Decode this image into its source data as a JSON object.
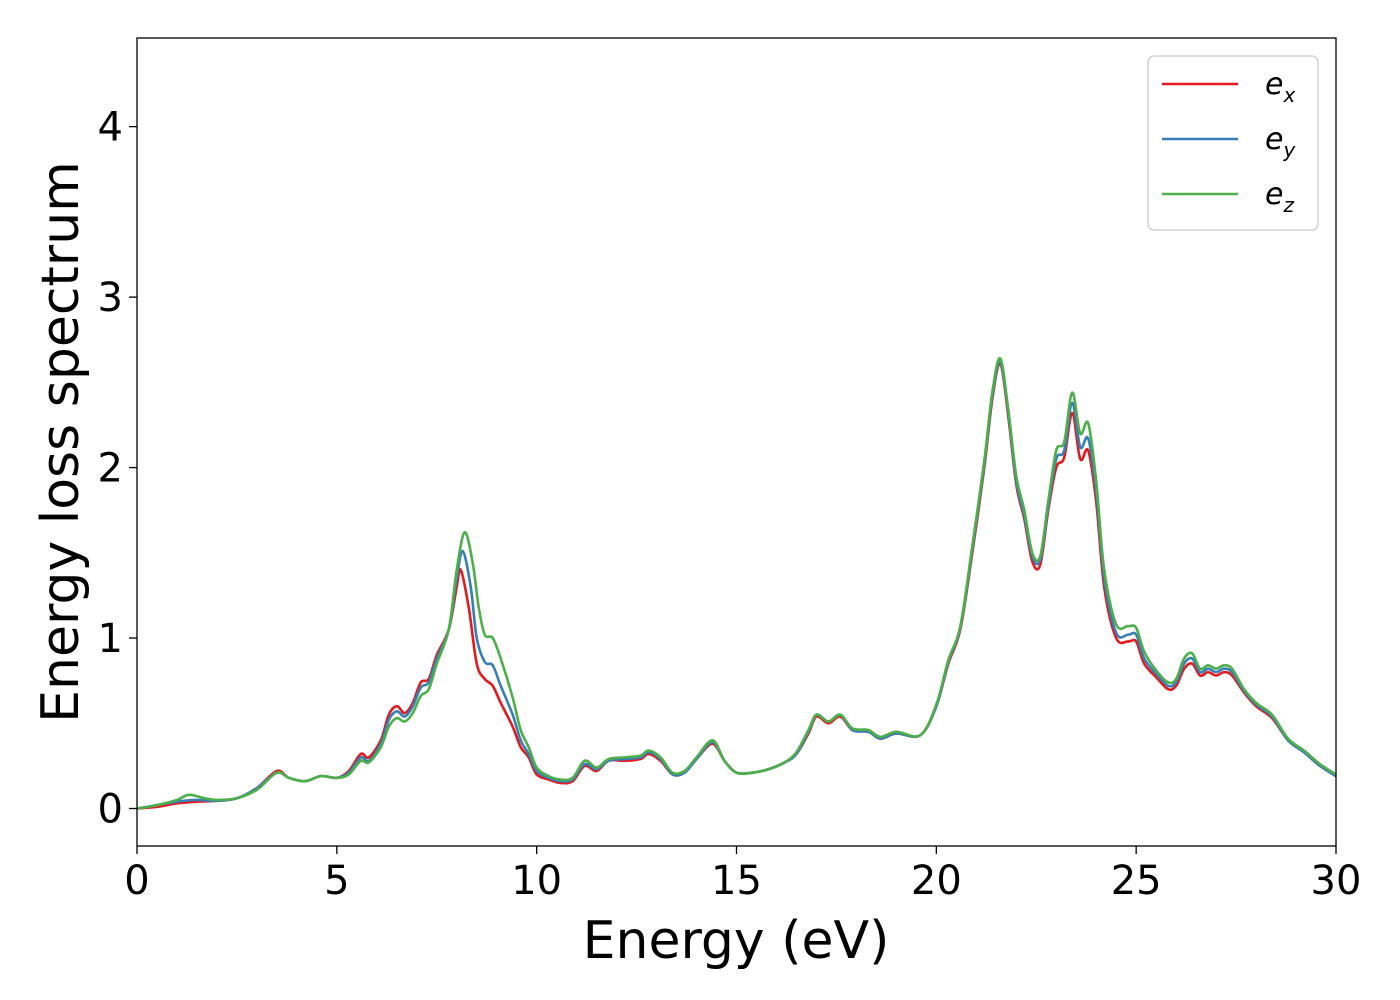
{
  "chart_data": {
    "type": "line",
    "title": "",
    "xlabel": "Energy (eV)",
    "ylabel": "Energy loss spectrum",
    "xlim": [
      0,
      30
    ],
    "ylim": [
      -0.22,
      4.52
    ],
    "xticks": [
      0,
      5,
      10,
      15,
      20,
      25,
      30
    ],
    "yticks": [
      0,
      1,
      2,
      3,
      4
    ],
    "xtick_labels": [
      "0",
      "5",
      "10",
      "15",
      "20",
      "25",
      "30"
    ],
    "ytick_labels": [
      "0",
      "1",
      "2",
      "3",
      "4"
    ],
    "grid": false,
    "legend_position": "top-right",
    "series": [
      {
        "name": "e_x",
        "label_base": "e",
        "label_sub": "x",
        "color": "#e41a1c",
        "points": [
          [
            0,
            0.0
          ],
          [
            0.5,
            0.01
          ],
          [
            1,
            0.03
          ],
          [
            1.5,
            0.04
          ],
          [
            2,
            0.045
          ],
          [
            2.5,
            0.06
          ],
          [
            3,
            0.12
          ],
          [
            3.5,
            0.22
          ],
          [
            3.8,
            0.18
          ],
          [
            4.2,
            0.16
          ],
          [
            4.6,
            0.19
          ],
          [
            5,
            0.18
          ],
          [
            5.3,
            0.22
          ],
          [
            5.6,
            0.32
          ],
          [
            5.8,
            0.3
          ],
          [
            6.1,
            0.4
          ],
          [
            6.3,
            0.55
          ],
          [
            6.5,
            0.6
          ],
          [
            6.7,
            0.56
          ],
          [
            6.9,
            0.62
          ],
          [
            7.1,
            0.74
          ],
          [
            7.3,
            0.76
          ],
          [
            7.5,
            0.9
          ],
          [
            7.8,
            1.05
          ],
          [
            8.0,
            1.3
          ],
          [
            8.1,
            1.4
          ],
          [
            8.3,
            1.18
          ],
          [
            8.5,
            0.85
          ],
          [
            8.7,
            0.76
          ],
          [
            8.9,
            0.72
          ],
          [
            9.1,
            0.62
          ],
          [
            9.4,
            0.48
          ],
          [
            9.6,
            0.36
          ],
          [
            9.8,
            0.3
          ],
          [
            10,
            0.2
          ],
          [
            10.3,
            0.17
          ],
          [
            10.6,
            0.15
          ],
          [
            10.9,
            0.16
          ],
          [
            11.2,
            0.25
          ],
          [
            11.5,
            0.22
          ],
          [
            11.8,
            0.28
          ],
          [
            12.2,
            0.28
          ],
          [
            12.6,
            0.29
          ],
          [
            12.8,
            0.32
          ],
          [
            13.1,
            0.28
          ],
          [
            13.4,
            0.2
          ],
          [
            13.7,
            0.21
          ],
          [
            14.0,
            0.29
          ],
          [
            14.4,
            0.38
          ],
          [
            14.7,
            0.28
          ],
          [
            15.0,
            0.21
          ],
          [
            15.4,
            0.21
          ],
          [
            15.8,
            0.23
          ],
          [
            16.2,
            0.27
          ],
          [
            16.5,
            0.32
          ],
          [
            16.8,
            0.44
          ],
          [
            17.0,
            0.54
          ],
          [
            17.3,
            0.5
          ],
          [
            17.6,
            0.54
          ],
          [
            17.9,
            0.46
          ],
          [
            18.3,
            0.45
          ],
          [
            18.6,
            0.41
          ],
          [
            19.0,
            0.44
          ],
          [
            19.6,
            0.43
          ],
          [
            20.0,
            0.6
          ],
          [
            20.3,
            0.85
          ],
          [
            20.6,
            1.05
          ],
          [
            20.9,
            1.5
          ],
          [
            21.2,
            2.0
          ],
          [
            21.4,
            2.4
          ],
          [
            21.6,
            2.61
          ],
          [
            21.8,
            2.3
          ],
          [
            22.0,
            1.9
          ],
          [
            22.2,
            1.7
          ],
          [
            22.4,
            1.45
          ],
          [
            22.6,
            1.43
          ],
          [
            22.8,
            1.75
          ],
          [
            23.0,
            2.0
          ],
          [
            23.2,
            2.06
          ],
          [
            23.4,
            2.32
          ],
          [
            23.6,
            2.05
          ],
          [
            23.8,
            2.1
          ],
          [
            24.0,
            1.8
          ],
          [
            24.2,
            1.3
          ],
          [
            24.5,
            1.0
          ],
          [
            24.8,
            0.98
          ],
          [
            25.0,
            0.98
          ],
          [
            25.2,
            0.85
          ],
          [
            25.5,
            0.77
          ],
          [
            25.8,
            0.7
          ],
          [
            26.0,
            0.72
          ],
          [
            26.2,
            0.82
          ],
          [
            26.4,
            0.85
          ],
          [
            26.6,
            0.78
          ],
          [
            26.8,
            0.8
          ],
          [
            27.0,
            0.78
          ],
          [
            27.2,
            0.8
          ],
          [
            27.4,
            0.78
          ],
          [
            27.7,
            0.68
          ],
          [
            28.0,
            0.6
          ],
          [
            28.4,
            0.53
          ],
          [
            28.8,
            0.4
          ],
          [
            29.2,
            0.33
          ],
          [
            29.6,
            0.25
          ],
          [
            30.0,
            0.19
          ]
        ]
      },
      {
        "name": "e_y",
        "label_base": "e",
        "label_sub": "y",
        "color": "#377eb8",
        "points": [
          [
            0,
            0.0
          ],
          [
            0.5,
            0.02
          ],
          [
            1,
            0.04
          ],
          [
            1.5,
            0.05
          ],
          [
            2,
            0.045
          ],
          [
            2.5,
            0.06
          ],
          [
            3,
            0.12
          ],
          [
            3.5,
            0.21
          ],
          [
            3.8,
            0.18
          ],
          [
            4.2,
            0.16
          ],
          [
            4.6,
            0.19
          ],
          [
            5,
            0.18
          ],
          [
            5.3,
            0.21
          ],
          [
            5.6,
            0.3
          ],
          [
            5.8,
            0.28
          ],
          [
            6.1,
            0.38
          ],
          [
            6.3,
            0.52
          ],
          [
            6.5,
            0.57
          ],
          [
            6.7,
            0.54
          ],
          [
            6.9,
            0.6
          ],
          [
            7.1,
            0.71
          ],
          [
            7.3,
            0.74
          ],
          [
            7.5,
            0.88
          ],
          [
            7.8,
            1.05
          ],
          [
            8.0,
            1.35
          ],
          [
            8.15,
            1.51
          ],
          [
            8.35,
            1.3
          ],
          [
            8.5,
            1.0
          ],
          [
            8.7,
            0.86
          ],
          [
            8.9,
            0.84
          ],
          [
            9.1,
            0.72
          ],
          [
            9.4,
            0.55
          ],
          [
            9.6,
            0.4
          ],
          [
            9.8,
            0.32
          ],
          [
            10,
            0.22
          ],
          [
            10.3,
            0.18
          ],
          [
            10.6,
            0.16
          ],
          [
            10.9,
            0.17
          ],
          [
            11.2,
            0.26
          ],
          [
            11.5,
            0.23
          ],
          [
            11.8,
            0.28
          ],
          [
            12.2,
            0.29
          ],
          [
            12.6,
            0.3
          ],
          [
            12.8,
            0.33
          ],
          [
            13.1,
            0.29
          ],
          [
            13.4,
            0.2
          ],
          [
            13.7,
            0.21
          ],
          [
            14.0,
            0.29
          ],
          [
            14.4,
            0.39
          ],
          [
            14.7,
            0.28
          ],
          [
            15.0,
            0.21
          ],
          [
            15.4,
            0.21
          ],
          [
            15.8,
            0.23
          ],
          [
            16.2,
            0.27
          ],
          [
            16.5,
            0.32
          ],
          [
            16.8,
            0.45
          ],
          [
            17.0,
            0.55
          ],
          [
            17.3,
            0.51
          ],
          [
            17.6,
            0.55
          ],
          [
            17.9,
            0.46
          ],
          [
            18.3,
            0.45
          ],
          [
            18.6,
            0.41
          ],
          [
            19.0,
            0.44
          ],
          [
            19.6,
            0.43
          ],
          [
            20.0,
            0.6
          ],
          [
            20.3,
            0.86
          ],
          [
            20.6,
            1.06
          ],
          [
            20.9,
            1.52
          ],
          [
            21.2,
            2.02
          ],
          [
            21.4,
            2.42
          ],
          [
            21.6,
            2.62
          ],
          [
            21.8,
            2.32
          ],
          [
            22.0,
            1.92
          ],
          [
            22.2,
            1.72
          ],
          [
            22.4,
            1.48
          ],
          [
            22.6,
            1.46
          ],
          [
            22.8,
            1.77
          ],
          [
            23.0,
            2.05
          ],
          [
            23.2,
            2.1
          ],
          [
            23.4,
            2.38
          ],
          [
            23.6,
            2.12
          ],
          [
            23.8,
            2.17
          ],
          [
            24.0,
            1.86
          ],
          [
            24.2,
            1.35
          ],
          [
            24.5,
            1.03
          ],
          [
            24.8,
            1.02
          ],
          [
            25.0,
            1.02
          ],
          [
            25.2,
            0.88
          ],
          [
            25.5,
            0.79
          ],
          [
            25.8,
            0.72
          ],
          [
            26.0,
            0.74
          ],
          [
            26.2,
            0.85
          ],
          [
            26.4,
            0.88
          ],
          [
            26.6,
            0.8
          ],
          [
            26.8,
            0.82
          ],
          [
            27.0,
            0.8
          ],
          [
            27.2,
            0.82
          ],
          [
            27.4,
            0.8
          ],
          [
            27.7,
            0.69
          ],
          [
            28.0,
            0.61
          ],
          [
            28.4,
            0.54
          ],
          [
            28.8,
            0.4
          ],
          [
            29.2,
            0.33
          ],
          [
            29.6,
            0.25
          ],
          [
            30.0,
            0.19
          ]
        ]
      },
      {
        "name": "e_z",
        "label_base": "e",
        "label_sub": "z",
        "color": "#4daf4a",
        "points": [
          [
            0,
            0.0
          ],
          [
            0.5,
            0.02
          ],
          [
            1,
            0.05
          ],
          [
            1.3,
            0.08
          ],
          [
            1.7,
            0.06
          ],
          [
            2,
            0.05
          ],
          [
            2.5,
            0.06
          ],
          [
            3,
            0.11
          ],
          [
            3.5,
            0.21
          ],
          [
            3.8,
            0.18
          ],
          [
            4.2,
            0.16
          ],
          [
            4.6,
            0.19
          ],
          [
            5,
            0.18
          ],
          [
            5.3,
            0.2
          ],
          [
            5.6,
            0.28
          ],
          [
            5.8,
            0.27
          ],
          [
            6.1,
            0.36
          ],
          [
            6.3,
            0.48
          ],
          [
            6.5,
            0.53
          ],
          [
            6.7,
            0.51
          ],
          [
            6.9,
            0.56
          ],
          [
            7.1,
            0.66
          ],
          [
            7.3,
            0.7
          ],
          [
            7.5,
            0.85
          ],
          [
            7.8,
            1.05
          ],
          [
            8.0,
            1.4
          ],
          [
            8.2,
            1.62
          ],
          [
            8.4,
            1.44
          ],
          [
            8.55,
            1.18
          ],
          [
            8.7,
            1.02
          ],
          [
            8.9,
            1.0
          ],
          [
            9.1,
            0.88
          ],
          [
            9.4,
            0.65
          ],
          [
            9.6,
            0.46
          ],
          [
            9.8,
            0.36
          ],
          [
            10,
            0.24
          ],
          [
            10.3,
            0.19
          ],
          [
            10.6,
            0.17
          ],
          [
            10.9,
            0.18
          ],
          [
            11.2,
            0.28
          ],
          [
            11.5,
            0.24
          ],
          [
            11.8,
            0.29
          ],
          [
            12.2,
            0.3
          ],
          [
            12.6,
            0.31
          ],
          [
            12.8,
            0.34
          ],
          [
            13.1,
            0.3
          ],
          [
            13.4,
            0.21
          ],
          [
            13.7,
            0.22
          ],
          [
            14.0,
            0.3
          ],
          [
            14.4,
            0.4
          ],
          [
            14.7,
            0.28
          ],
          [
            15.0,
            0.21
          ],
          [
            15.4,
            0.21
          ],
          [
            15.8,
            0.23
          ],
          [
            16.2,
            0.27
          ],
          [
            16.5,
            0.33
          ],
          [
            16.8,
            0.46
          ],
          [
            17.0,
            0.55
          ],
          [
            17.3,
            0.51
          ],
          [
            17.6,
            0.55
          ],
          [
            17.9,
            0.47
          ],
          [
            18.3,
            0.46
          ],
          [
            18.6,
            0.42
          ],
          [
            19.0,
            0.45
          ],
          [
            19.6,
            0.43
          ],
          [
            20.0,
            0.61
          ],
          [
            20.3,
            0.87
          ],
          [
            20.6,
            1.07
          ],
          [
            20.9,
            1.54
          ],
          [
            21.2,
            2.04
          ],
          [
            21.4,
            2.44
          ],
          [
            21.6,
            2.64
          ],
          [
            21.8,
            2.34
          ],
          [
            22.0,
            1.95
          ],
          [
            22.2,
            1.75
          ],
          [
            22.4,
            1.5
          ],
          [
            22.6,
            1.48
          ],
          [
            22.8,
            1.8
          ],
          [
            23.0,
            2.1
          ],
          [
            23.2,
            2.15
          ],
          [
            23.4,
            2.44
          ],
          [
            23.6,
            2.2
          ],
          [
            23.8,
            2.26
          ],
          [
            24.0,
            1.92
          ],
          [
            24.2,
            1.4
          ],
          [
            24.5,
            1.08
          ],
          [
            24.8,
            1.07
          ],
          [
            25.0,
            1.06
          ],
          [
            25.2,
            0.92
          ],
          [
            25.5,
            0.81
          ],
          [
            25.8,
            0.74
          ],
          [
            26.0,
            0.76
          ],
          [
            26.2,
            0.88
          ],
          [
            26.4,
            0.91
          ],
          [
            26.6,
            0.82
          ],
          [
            26.8,
            0.84
          ],
          [
            27.0,
            0.82
          ],
          [
            27.2,
            0.84
          ],
          [
            27.4,
            0.82
          ],
          [
            27.7,
            0.7
          ],
          [
            28.0,
            0.62
          ],
          [
            28.4,
            0.55
          ],
          [
            28.8,
            0.41
          ],
          [
            29.2,
            0.34
          ],
          [
            29.6,
            0.26
          ],
          [
            30.0,
            0.2
          ]
        ]
      }
    ]
  }
}
